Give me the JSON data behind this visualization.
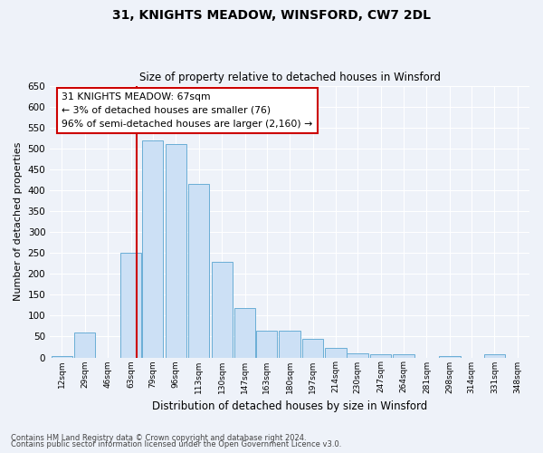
{
  "title": "31, KNIGHTS MEADOW, WINSFORD, CW7 2DL",
  "subtitle": "Size of property relative to detached houses in Winsford",
  "xlabel": "Distribution of detached houses by size in Winsford",
  "ylabel": "Number of detached properties",
  "bin_labels": [
    "12sqm",
    "29sqm",
    "46sqm",
    "63sqm",
    "79sqm",
    "96sqm",
    "113sqm",
    "130sqm",
    "147sqm",
    "163sqm",
    "180sqm",
    "197sqm",
    "214sqm",
    "230sqm",
    "247sqm",
    "264sqm",
    "281sqm",
    "298sqm",
    "314sqm",
    "331sqm",
    "348sqm"
  ],
  "bin_values": [
    12,
    29,
    46,
    63,
    79,
    96,
    113,
    130,
    147,
    163,
    180,
    197,
    214,
    230,
    247,
    264,
    281,
    298,
    314,
    331,
    348
  ],
  "bar_heights": [
    3,
    60,
    0,
    250,
    520,
    510,
    415,
    228,
    118,
    63,
    63,
    45,
    23,
    10,
    8,
    8,
    0,
    3,
    0,
    8,
    0
  ],
  "bar_color": "#cce0f5",
  "bar_edge_color": "#6aaed6",
  "property_sq": 67,
  "property_line_label": "31 KNIGHTS MEADOW: 67sqm",
  "annotation_line1": "← 3% of detached houses are smaller (76)",
  "annotation_line2": "96% of semi-detached houses are larger (2,160) →",
  "annotation_box_color": "#ffffff",
  "annotation_box_edge_color": "#cc0000",
  "vline_color": "#cc0000",
  "ylim": [
    0,
    650
  ],
  "yticks": [
    0,
    50,
    100,
    150,
    200,
    250,
    300,
    350,
    400,
    450,
    500,
    550,
    600,
    650
  ],
  "footnote1": "Contains HM Land Registry data © Crown copyright and database right 2024.",
  "footnote2": "Contains public sector information licensed under the Open Government Licence v3.0.",
  "bg_color": "#eef2f9",
  "plot_bg_color": "#eef2f9",
  "grid_color": "#ffffff",
  "bar_width": 15.5
}
